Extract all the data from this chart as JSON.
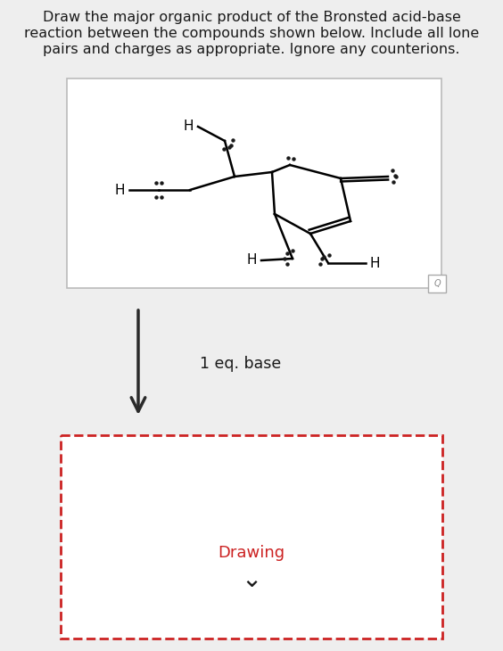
{
  "title_line1": "Draw the major organic product of the Bronsted acid-base",
  "title_line2": "reaction between the compounds shown below. Include all lone",
  "title_line3": "pairs and charges as appropriate. Ignore any counterions.",
  "arrow_label": "1 eq. base",
  "drawing_label": "Drawing",
  "bg_color": "#eeeeee",
  "box_color": "#ffffff",
  "text_color": "#1a1a1a",
  "dashed_color": "#cc2222",
  "arrow_color": "#2a2a2a",
  "title_fontsize": 11.5,
  "fig_w": 5.64,
  "fig_h": 7.3,
  "dpi": 100
}
